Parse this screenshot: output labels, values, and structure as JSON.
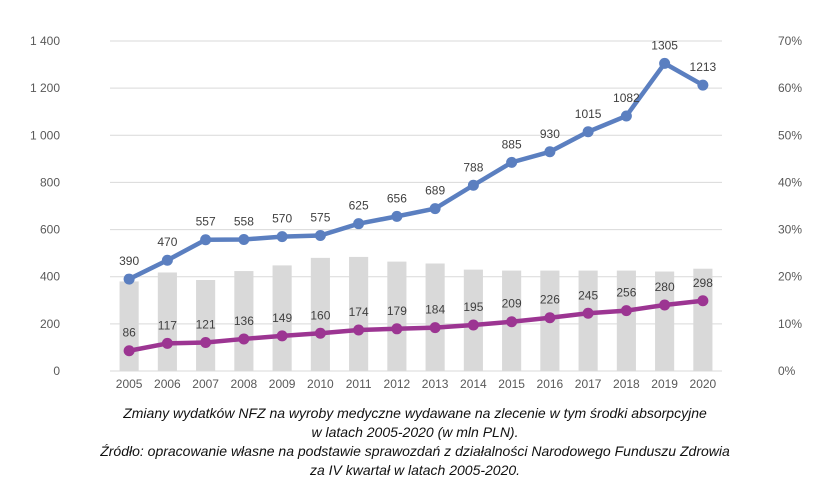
{
  "chart_data": {
    "type": "bar+line",
    "categories": [
      "2005",
      "2006",
      "2007",
      "2008",
      "2009",
      "2010",
      "2011",
      "2012",
      "2013",
      "2014",
      "2015",
      "2016",
      "2017",
      "2018",
      "2019",
      "2020"
    ],
    "series": [
      {
        "axis": "right",
        "kind": "bar",
        "color": "#d9d9d9",
        "values": [
          0.19,
          0.209,
          0.193,
          0.212,
          0.224,
          0.24,
          0.242,
          0.232,
          0.228,
          0.215,
          0.213,
          0.213,
          0.213,
          0.213,
          0.211,
          0.217
        ]
      },
      {
        "axis": "left",
        "kind": "line",
        "color": "#5b7fc0",
        "values": [
          390,
          470,
          557,
          558,
          570,
          575,
          625,
          656,
          689,
          788,
          885,
          930,
          1015,
          1082,
          1305,
          1213
        ],
        "labels": [
          "390",
          "470",
          "557",
          "558",
          "570",
          "575",
          "625",
          "656",
          "689",
          "788",
          "885",
          "930",
          "1015",
          "1082",
          "1305",
          "1213"
        ]
      },
      {
        "axis": "left",
        "kind": "line",
        "color": "#9c3592",
        "values": [
          86,
          117,
          121,
          136,
          149,
          160,
          174,
          179,
          184,
          195,
          209,
          226,
          245,
          256,
          280,
          298
        ],
        "labels": [
          "86",
          "117",
          "121",
          "136",
          "149",
          "160",
          "174",
          "179",
          "184",
          "195",
          "209",
          "226",
          "245",
          "256",
          "280",
          "298"
        ]
      }
    ],
    "ylim": [
      0,
      1400
    ],
    "yticks": [
      "0",
      "200",
      "400",
      "600",
      "800",
      "1 000",
      "1 200",
      "1 400"
    ],
    "y2lim": [
      0,
      0.7
    ],
    "y2ticks": [
      "0%",
      "10%",
      "20%",
      "30%",
      "40%",
      "50%",
      "60%",
      "70%"
    ],
    "grid": true,
    "gridColor": "#d9d9d9"
  },
  "caption": {
    "line1": "Zmiany wydatków NFZ na wyroby medyczne wydawane na zlecenie w tym środki absorpcyjne",
    "line2": "w latach 2005-2020 (w mln PLN).",
    "line3": "Źródło: opracowanie własne na podstawie sprawozdań z działalności Narodowego Funduszu Zdrowia",
    "line4": "za IV kwartał w latach 2005-2020."
  }
}
